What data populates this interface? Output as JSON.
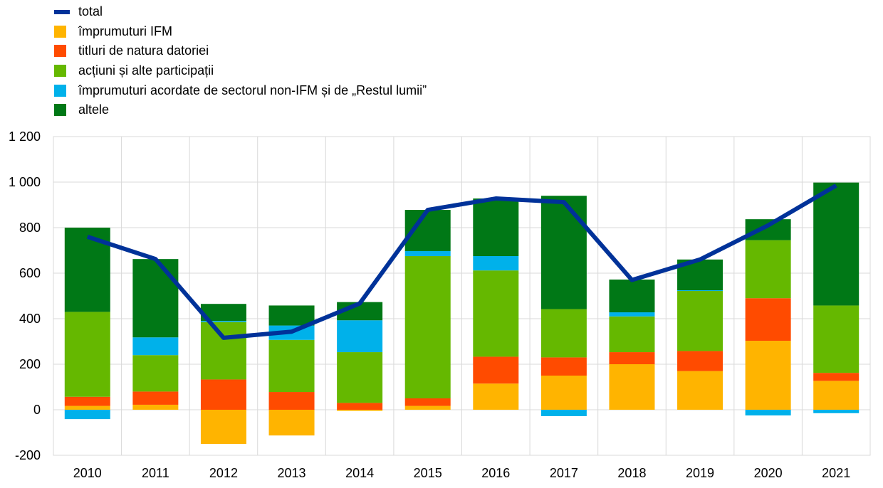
{
  "chart_data": {
    "type": "bar",
    "stacked": true,
    "categories": [
      "2010",
      "2011",
      "2012",
      "2013",
      "2014",
      "2015",
      "2016",
      "2017",
      "2018",
      "2019",
      "2020",
      "2021"
    ],
    "ylim": [
      -200,
      1200
    ],
    "yticks": [
      -200,
      0,
      200,
      400,
      600,
      800,
      1000,
      1200
    ],
    "ytick_labels": [
      "-200",
      "0",
      "200",
      "400",
      "600",
      "800",
      "1 000",
      "1 200"
    ],
    "grid": true,
    "legend_position": "top-left",
    "series": [
      {
        "name": "împrumuturi IFM",
        "color": "#FFB400",
        "values": [
          17,
          22,
          -150,
          -113,
          -5,
          17,
          115,
          150,
          200,
          170,
          303,
          127
        ]
      },
      {
        "name": "titluri de natura datoriei",
        "color": "#FF4B00",
        "values": [
          40,
          58,
          133,
          78,
          30,
          33,
          118,
          80,
          53,
          88,
          187,
          35
        ]
      },
      {
        "name": "acțiuni și alte participații",
        "color": "#65B800",
        "values": [
          373,
          160,
          252,
          229,
          223,
          625,
          379,
          212,
          157,
          264,
          255,
          296
        ]
      },
      {
        "name": "împrumuturi acordate de sectorul non-IFM și de „Restul lumii”",
        "color": "#00B1EA",
        "values": [
          -41,
          78,
          5,
          63,
          140,
          22,
          63,
          -28,
          18,
          3,
          -25,
          -15
        ]
      },
      {
        "name": "altele",
        "color": "#007816",
        "values": [
          370,
          344,
          75,
          88,
          80,
          181,
          253,
          498,
          144,
          135,
          92,
          540
        ]
      }
    ],
    "line": {
      "name": "total",
      "color": "#003299",
      "values": [
        760,
        662,
        316,
        343,
        467,
        878,
        928,
        912,
        570,
        660,
        810,
        985
      ]
    }
  }
}
